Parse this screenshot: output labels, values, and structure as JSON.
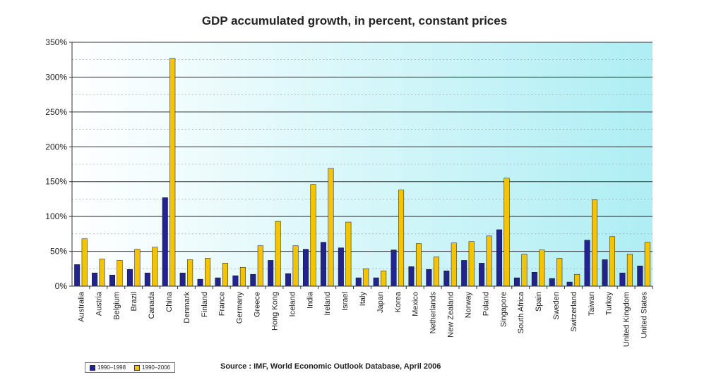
{
  "chart_data": {
    "type": "bar",
    "title": "GDP accumulated growth, in percent, constant prices",
    "xlabel": "",
    "ylabel": "",
    "ylim": [
      0,
      350
    ],
    "yticks": [
      "0%",
      "50%",
      "100%",
      "150%",
      "200%",
      "250%",
      "300%",
      "350%"
    ],
    "grid": true,
    "legend_position": "bottom-left",
    "categories": [
      "Australia",
      "Austria",
      "Belgium",
      "Brazil",
      "Canada",
      "China",
      "Denmark",
      "Finland",
      "France",
      "Germany",
      "Greece",
      "Hong Kong",
      "Iceland",
      "India",
      "Ireland",
      "Israel",
      "Italy",
      "Japan",
      "Korea",
      "Mexico",
      "Netherlands",
      "New Zealand",
      "Norway",
      "Poland",
      "Singapore",
      "South Africa",
      "Spain",
      "Sweden",
      "Switzerland",
      "Taiwan",
      "Turkey",
      "United Kingdom",
      "United States"
    ],
    "series": [
      {
        "name": "1990–1998",
        "color": "#23238f",
        "values": [
          31,
          19,
          16,
          24,
          19,
          127,
          19,
          10,
          12,
          15,
          17,
          37,
          18,
          53,
          63,
          55,
          12,
          12,
          52,
          28,
          24,
          22,
          37,
          33,
          81,
          12,
          20,
          11,
          6,
          66,
          38,
          19,
          29
        ]
      },
      {
        "name": "1990–2006",
        "color": "#f5c400",
        "values": [
          68,
          39,
          37,
          53,
          56,
          327,
          38,
          40,
          33,
          27,
          58,
          93,
          58,
          146,
          169,
          92,
          25,
          22,
          138,
          61,
          42,
          62,
          64,
          72,
          155,
          46,
          52,
          40,
          17,
          124,
          71,
          46,
          63
        ]
      }
    ],
    "source": "Source : IMF, World Economic Outlook Database, April 2006"
  }
}
